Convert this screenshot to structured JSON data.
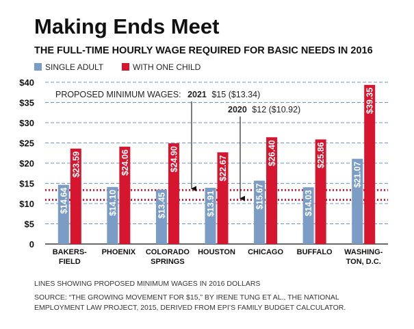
{
  "chart_data": {
    "type": "bar",
    "title": "Making Ends Meet",
    "subtitle": "THE FULL-TIME HOURLY WAGE REQUIRED FOR BASIC NEEDS IN 2016",
    "categories": [
      [
        "BAKERS-",
        "FIELD"
      ],
      [
        "PHOENIX"
      ],
      [
        "COLORADO",
        "SPRINGS"
      ],
      [
        "HOUSTON"
      ],
      [
        "CHICAGO"
      ],
      [
        "BUFFALO"
      ],
      [
        "WASHING-",
        "TON, D.C."
      ]
    ],
    "series": [
      {
        "name": "SINGLE ADULT",
        "color": "#7b9cc4",
        "values": [
          14.64,
          14.1,
          13.45,
          13.91,
          15.67,
          14.03,
          21.07
        ],
        "labels": [
          "$14.64",
          "$14.10",
          "$13.45",
          "$13.91",
          "$15.67",
          "$14.03",
          "$21.07"
        ]
      },
      {
        "name": "WITH ONE CHILD",
        "color": "#d6162f",
        "values": [
          23.59,
          24.06,
          24.9,
          22.67,
          26.4,
          25.86,
          39.35
        ],
        "labels": [
          "$23.59",
          "$24.06",
          "$24.90",
          "$22.67",
          "$26.40",
          "$25.86",
          "$39.35"
        ]
      }
    ],
    "ylim": [
      0,
      40
    ],
    "yticks": [
      0,
      5,
      10,
      15,
      20,
      25,
      30,
      35,
      40
    ],
    "ytick_labels": [
      "0",
      "$5",
      "$10",
      "$15",
      "$20",
      "$25",
      "$30",
      "$35",
      "$40"
    ],
    "grid": "dashed horizontal",
    "legend_position": "top-left",
    "reference_lines": [
      {
        "value": 13.34,
        "color": "#d6162f",
        "style": "dotted"
      },
      {
        "value": 10.92,
        "color": "#d6162f",
        "style": "dotted"
      }
    ],
    "annotations": {
      "line1_prefix": "PROPOSED MINIMUM WAGES:",
      "line1_year": "2021",
      "line1_rest": "$15 ($13.34)",
      "line2_year": "2020",
      "line2_rest": "$12 ($10.92)"
    },
    "footnote": "LINES SHOWING PROPOSED MINIMUM WAGES IN 2016 DOLLARS",
    "source_line1": "SOURCE: “THE GROWING MOVEMENT FOR $15,” BY IRENE TUNG ET AL., THE NATIONAL",
    "source_line2": "EMPLOYMENT LAW PROJECT, 2015, DERIVED FROM EPI’S FAMILY BUDGET CALCULATOR."
  }
}
